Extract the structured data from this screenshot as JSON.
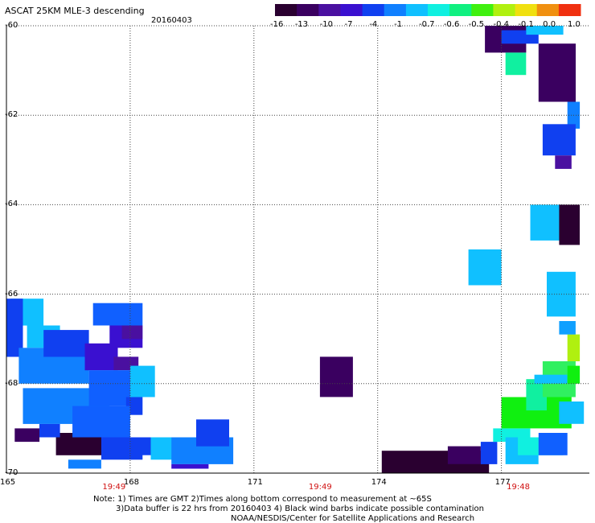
{
  "header": {
    "title": "ASCAT 25KM MLE-3 descending",
    "date": "20160403"
  },
  "colorbar": {
    "labels": [
      "-16",
      "-13",
      "-10",
      "-7",
      "-4",
      "-1",
      "-0.7",
      "-0.6",
      "-0.5",
      "-0.4",
      "-0.1",
      "0.0",
      "1.0"
    ],
    "colors": [
      "#2a0030",
      "#3a0060",
      "#4a10a0",
      "#3a10d0",
      "#1040f0",
      "#1080ff",
      "#10c0ff",
      "#10f0e0",
      "#10f080",
      "#40f010",
      "#b0f010",
      "#f0e010",
      "#f09010",
      "#f03010"
    ]
  },
  "chart_data": {
    "type": "heatmap",
    "title": "ASCAT 25KM MLE-3 descending",
    "date": "20160403",
    "xlim": [
      165,
      177.9
    ],
    "ylim": [
      -70,
      -60
    ],
    "xticks": [
      "165",
      "168",
      "171",
      "174",
      "177"
    ],
    "yticks": [
      "-60",
      "-62",
      "-64",
      "-66",
      "-68",
      "-70"
    ],
    "pass_times": [
      {
        "lon": 167.6,
        "time": "19:49"
      },
      {
        "lon": 172.6,
        "time": "19:49"
      },
      {
        "lon": 177.4,
        "time": "19:48"
      }
    ],
    "grid": true,
    "cells": [
      {
        "lon": 166.2,
        "lat": -69.6,
        "w": 1.1,
        "h": 0.5,
        "c": "#2a0030"
      },
      {
        "lon": 165.2,
        "lat": -69.3,
        "w": 0.6,
        "h": 0.3,
        "c": "#3a0060"
      },
      {
        "lon": 165.8,
        "lat": -69.2,
        "w": 0.5,
        "h": 0.3,
        "c": "#1040f0"
      },
      {
        "lon": 165.1,
        "lat": -66.7,
        "w": 0.8,
        "h": 0.6,
        "c": "#10c0ff"
      },
      {
        "lon": 165.5,
        "lat": -67.2,
        "w": 0.8,
        "h": 0.5,
        "c": "#10c0ff"
      },
      {
        "lon": 165.0,
        "lat": -67.4,
        "w": 0.4,
        "h": 1.3,
        "c": "#1040f0"
      },
      {
        "lon": 165.3,
        "lat": -68.0,
        "w": 1.7,
        "h": 0.8,
        "c": "#1080ff"
      },
      {
        "lon": 165.4,
        "lat": -68.9,
        "w": 2.1,
        "h": 0.8,
        "c": "#1080ff"
      },
      {
        "lon": 165.9,
        "lat": -67.4,
        "w": 1.1,
        "h": 0.6,
        "c": "#1040f0"
      },
      {
        "lon": 166.9,
        "lat": -67.7,
        "w": 0.8,
        "h": 0.6,
        "c": "#3a10d0"
      },
      {
        "lon": 167.6,
        "lat": -67.7,
        "w": 0.6,
        "h": 0.3,
        "c": "#4a10a0"
      },
      {
        "lon": 167.0,
        "lat": -68.5,
        "w": 1.1,
        "h": 0.8,
        "c": "#1060ff"
      },
      {
        "lon": 168.0,
        "lat": -68.3,
        "w": 0.6,
        "h": 0.7,
        "c": "#10c0ff"
      },
      {
        "lon": 167.9,
        "lat": -68.7,
        "w": 0.4,
        "h": 0.4,
        "c": "#1040f0"
      },
      {
        "lon": 166.6,
        "lat": -69.2,
        "w": 1.4,
        "h": 0.7,
        "c": "#1060ff"
      },
      {
        "lon": 167.3,
        "lat": -69.7,
        "w": 1.0,
        "h": 0.5,
        "c": "#1040f0"
      },
      {
        "lon": 166.5,
        "lat": -69.9,
        "w": 0.8,
        "h": 0.2,
        "c": "#1080ff"
      },
      {
        "lon": 167.8,
        "lat": -69.6,
        "w": 1.2,
        "h": 0.4,
        "c": "#1040f0"
      },
      {
        "lon": 168.5,
        "lat": -69.7,
        "w": 0.7,
        "h": 0.5,
        "c": "#10c0ff"
      },
      {
        "lon": 169.0,
        "lat": -69.8,
        "w": 1.5,
        "h": 0.6,
        "c": "#1080ff"
      },
      {
        "lon": 169.0,
        "lat": -69.9,
        "w": 0.9,
        "h": 0.1,
        "c": "#3a10d0"
      },
      {
        "lon": 169.6,
        "lat": -69.4,
        "w": 0.8,
        "h": 0.6,
        "c": "#1040f0"
      },
      {
        "lon": 167.1,
        "lat": -66.7,
        "w": 1.2,
        "h": 0.5,
        "c": "#1060ff"
      },
      {
        "lon": 167.5,
        "lat": -67.2,
        "w": 0.8,
        "h": 0.5,
        "c": "#3a10d0"
      },
      {
        "lon": 167.8,
        "lat": -67.0,
        "w": 0.5,
        "h": 0.3,
        "c": "#4a10a0"
      },
      {
        "lon": 172.6,
        "lat": -68.3,
        "w": 0.8,
        "h": 0.9,
        "c": "#3a0060"
      },
      {
        "lon": 174.1,
        "lat": -70.0,
        "w": 2.6,
        "h": 0.5,
        "c": "#2a0030"
      },
      {
        "lon": 175.7,
        "lat": -69.8,
        "w": 0.8,
        "h": 0.4,
        "c": "#3a0060"
      },
      {
        "lon": 176.5,
        "lat": -69.8,
        "w": 0.4,
        "h": 0.5,
        "c": "#1040f0"
      },
      {
        "lon": 176.8,
        "lat": -69.3,
        "w": 0.9,
        "h": 0.3,
        "c": "#10f0e0"
      },
      {
        "lon": 177.0,
        "lat": -69.0,
        "w": 1.7,
        "h": 0.7,
        "c": "#10f010"
      },
      {
        "lon": 177.1,
        "lat": -69.8,
        "w": 0.8,
        "h": 0.6,
        "c": "#10c0ff"
      },
      {
        "lon": 177.4,
        "lat": -69.6,
        "w": 1.1,
        "h": 0.4,
        "c": "#10f0e0"
      },
      {
        "lon": 177.9,
        "lat": -69.6,
        "w": 0.7,
        "h": 0.5,
        "c": "#1060ff"
      },
      {
        "lon": 177.6,
        "lat": -68.6,
        "w": 0.5,
        "h": 0.7,
        "c": "#10f0a0"
      },
      {
        "lon": 178.0,
        "lat": -68.3,
        "w": 0.8,
        "h": 0.8,
        "c": "#30f060"
      },
      {
        "lon": 178.4,
        "lat": -68.9,
        "w": 0.6,
        "h": 0.5,
        "c": "#10c0ff"
      },
      {
        "lon": 177.8,
        "lat": -68.0,
        "w": 0.8,
        "h": 0.2,
        "c": "#10c0ff"
      },
      {
        "lon": 178.6,
        "lat": -68.0,
        "w": 0.3,
        "h": 0.4,
        "c": "#10f010"
      },
      {
        "lon": 178.6,
        "lat": -67.5,
        "w": 0.3,
        "h": 0.6,
        "c": "#b0f010"
      },
      {
        "lon": 178.1,
        "lat": -66.5,
        "w": 0.7,
        "h": 1.0,
        "c": "#10c0ff"
      },
      {
        "lon": 178.4,
        "lat": -66.9,
        "w": 0.4,
        "h": 0.3,
        "c": "#10a0ff"
      },
      {
        "lon": 176.2,
        "lat": -65.8,
        "w": 0.8,
        "h": 0.8,
        "c": "#10c0ff"
      },
      {
        "lon": 177.7,
        "lat": -64.8,
        "w": 0.8,
        "h": 0.8,
        "c": "#10c0ff"
      },
      {
        "lon": 178.4,
        "lat": -64.9,
        "w": 0.5,
        "h": 0.9,
        "c": "#2a0030"
      },
      {
        "lon": 176.6,
        "lat": -60.6,
        "w": 1.0,
        "h": 0.6,
        "c": "#3a0060"
      },
      {
        "lon": 177.0,
        "lat": -60.4,
        "w": 0.9,
        "h": 0.3,
        "c": "#1040f0"
      },
      {
        "lon": 177.1,
        "lat": -61.1,
        "w": 0.5,
        "h": 0.5,
        "c": "#10f0a0"
      },
      {
        "lon": 177.6,
        "lat": -60.2,
        "w": 0.9,
        "h": 0.2,
        "c": "#10c0ff"
      },
      {
        "lon": 177.9,
        "lat": -61.7,
        "w": 0.9,
        "h": 1.3,
        "c": "#3a0060"
      },
      {
        "lon": 178.6,
        "lat": -62.3,
        "w": 0.3,
        "h": 0.6,
        "c": "#1080ff"
      },
      {
        "lon": 178.0,
        "lat": -62.9,
        "w": 0.8,
        "h": 0.7,
        "c": "#1040f0"
      },
      {
        "lon": 178.3,
        "lat": -63.2,
        "w": 0.4,
        "h": 0.3,
        "c": "#4a10a0"
      }
    ]
  },
  "footer": {
    "note_line1": "Note: 1) Times are GMT 2)Times along bottom correspond to measurement at ~65S",
    "note_line2": "3)Data buffer is 22 hrs from 20160403 4) Black wind barbs indicate possible contamination",
    "note_line3": "NOAA/NESDIS/Center for Satellite Applications and Research"
  }
}
